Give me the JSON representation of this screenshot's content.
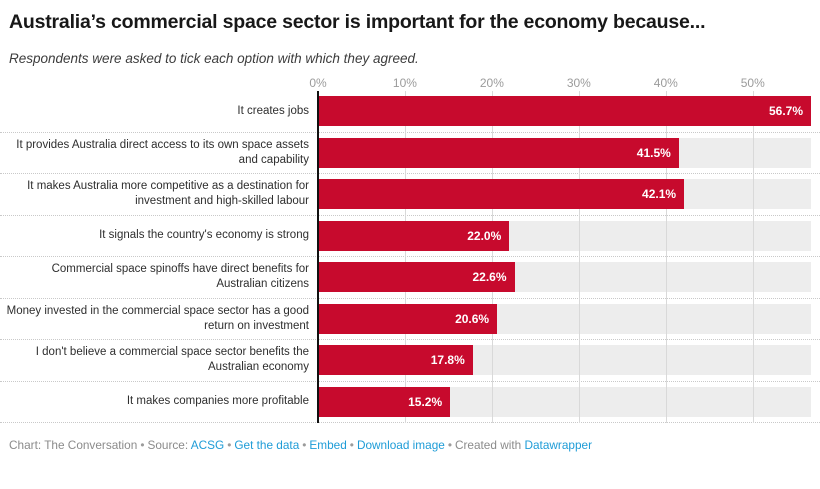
{
  "title": "Australia’s commercial space sector is important for the economy because...",
  "subtitle": "Respondents were asked to tick each option with which they agreed.",
  "chart_data": {
    "type": "bar",
    "orientation": "horizontal",
    "title": "Australia’s commercial space sector is important for the economy because...",
    "subtitle": "Respondents were asked to tick each option with which they agreed.",
    "categories": [
      "It creates jobs",
      "It provides Australia direct access to its own space assets and capability",
      "It makes Australia more competitive as a destination for investment and high-skilled labour",
      "It signals the country's economy is strong",
      "Commercial space spinoffs have direct benefits for Australian citizens",
      "Money invested in the commercial space sector has a good return on investment",
      "I don't believe a commercial space sector benefits the Australian economy",
      "It makes companies more profitable"
    ],
    "values": [
      56.7,
      41.5,
      42.1,
      22.0,
      22.6,
      20.6,
      17.8,
      15.2
    ],
    "value_labels": [
      "56.7%",
      "41.5%",
      "42.1%",
      "22.0%",
      "22.6%",
      "20.6%",
      "17.8%",
      "15.2%"
    ],
    "xlim": [
      0,
      56.7
    ],
    "x_ticks": [
      {
        "label": "0%",
        "value": 0
      },
      {
        "label": "10%",
        "value": 10
      },
      {
        "label": "20%",
        "value": 20
      },
      {
        "label": "30%",
        "value": 30
      },
      {
        "label": "40%",
        "value": 40
      },
      {
        "label": "50%",
        "value": 50
      }
    ],
    "grid": true,
    "legend": "none",
    "bar_color": "#c70a2d",
    "track_color": "#ededed",
    "gridline_color": "#d9d9d9",
    "axis_line_color": "#111111"
  },
  "footer": {
    "separator": "•",
    "items": [
      {
        "pieces": [
          {
            "text": "Chart: The Conversation",
            "link": false
          }
        ]
      },
      {
        "pieces": [
          {
            "text": "Source: ",
            "link": false
          },
          {
            "text": "ACSG",
            "link": true
          }
        ]
      },
      {
        "pieces": [
          {
            "text": "Get the data",
            "link": true
          }
        ]
      },
      {
        "pieces": [
          {
            "text": "Embed",
            "link": true
          }
        ]
      },
      {
        "pieces": [
          {
            "text": "Download image",
            "link": true
          }
        ]
      },
      {
        "pieces": [
          {
            "text": "Created with ",
            "link": false
          },
          {
            "text": "Datawrapper",
            "link": true
          }
        ]
      }
    ]
  },
  "colors": {
    "bar": "#c70a2d",
    "track": "#ededed",
    "gridline": "#d9d9d9",
    "axis_line": "#111111",
    "link_blue": "#1e9cd7",
    "footer_gray": "#8b8b8b",
    "tick_gray": "#9b9b9b"
  }
}
